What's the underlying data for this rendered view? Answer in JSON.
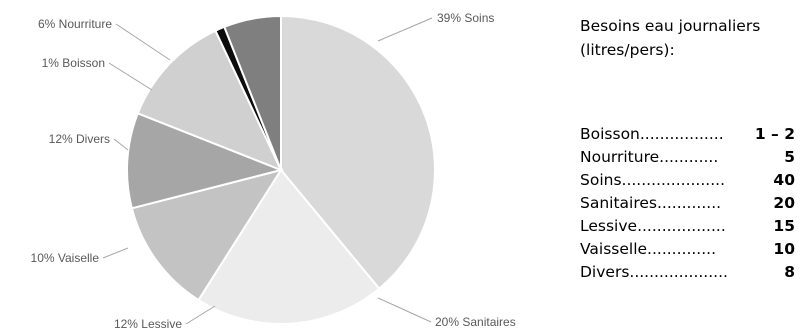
{
  "chart_data": {
    "type": "pie",
    "title": "",
    "start_angle_deg": 0,
    "direction": "clockwise",
    "slices": [
      {
        "category": "Soins",
        "value": 39,
        "label": "39% Soins",
        "color": "#d9d9d9"
      },
      {
        "category": "Sanitaires",
        "value": 20,
        "label": "20% Sanitaires",
        "color": "#ececec"
      },
      {
        "category": "Lessive",
        "value": 12,
        "label": "12% Lessive",
        "color": "#c3c3c3"
      },
      {
        "category": "Vaiselle",
        "value": 10,
        "label": "10% Vaiselle",
        "color": "#a6a6a6"
      },
      {
        "category": "Divers",
        "value": 12,
        "label": "12% Divers",
        "color": "#d0d0d0"
      },
      {
        "category": "Boisson",
        "value": 1,
        "label": "1% Boisson",
        "color": "#0d0d0d"
      },
      {
        "category": "Nourriture",
        "value": 6,
        "label": "6% Nourriture",
        "color": "#7f7f7f"
      }
    ]
  },
  "legend_box": {
    "title": "Besoins eau journaliers (litres/pers):",
    "rows": [
      {
        "label": "Boisson.................",
        "value": "1 – 2"
      },
      {
        "label": "Nourriture............",
        "value": "5"
      },
      {
        "label": "Soins.....................",
        "value": "40"
      },
      {
        "label": "Sanitaires.............",
        "value": "20"
      },
      {
        "label": "Lessive..................",
        "value": "15"
      },
      {
        "label": "Vaisselle..............",
        "value": "10"
      },
      {
        "label": "Divers....................",
        "value": "8"
      }
    ]
  }
}
